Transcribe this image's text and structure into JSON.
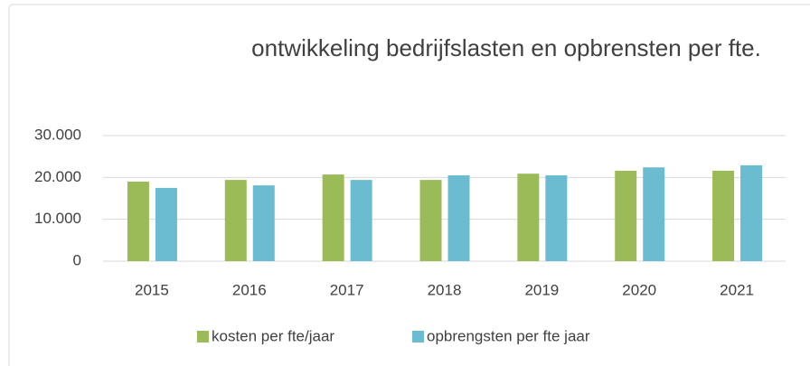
{
  "chart_data": {
    "type": "bar",
    "title": "ontwikkeling bedrijfslasten en opbrensten per fte.",
    "categories": [
      "2015",
      "2016",
      "2017",
      "2018",
      "2019",
      "2020",
      "2021"
    ],
    "series": [
      {
        "name": "kosten per fte/jaar",
        "color": "#9bbb59",
        "values": [
          19000,
          19400,
          20700,
          19400,
          20900,
          21600,
          21600
        ]
      },
      {
        "name": "opbrengsten per fte jaar",
        "color": "#6bbcd1",
        "values": [
          17500,
          18100,
          19400,
          20500,
          20500,
          22400,
          22900
        ]
      }
    ],
    "ylim": [
      0,
      30000
    ],
    "yticks": [
      0,
      {
        "value": 10000,
        "label": "10.000"
      },
      {
        "value": 20000,
        "label": "20.000"
      },
      {
        "value": 30000,
        "label": "30.000"
      }
    ],
    "grid": true,
    "legend": "bottom"
  }
}
